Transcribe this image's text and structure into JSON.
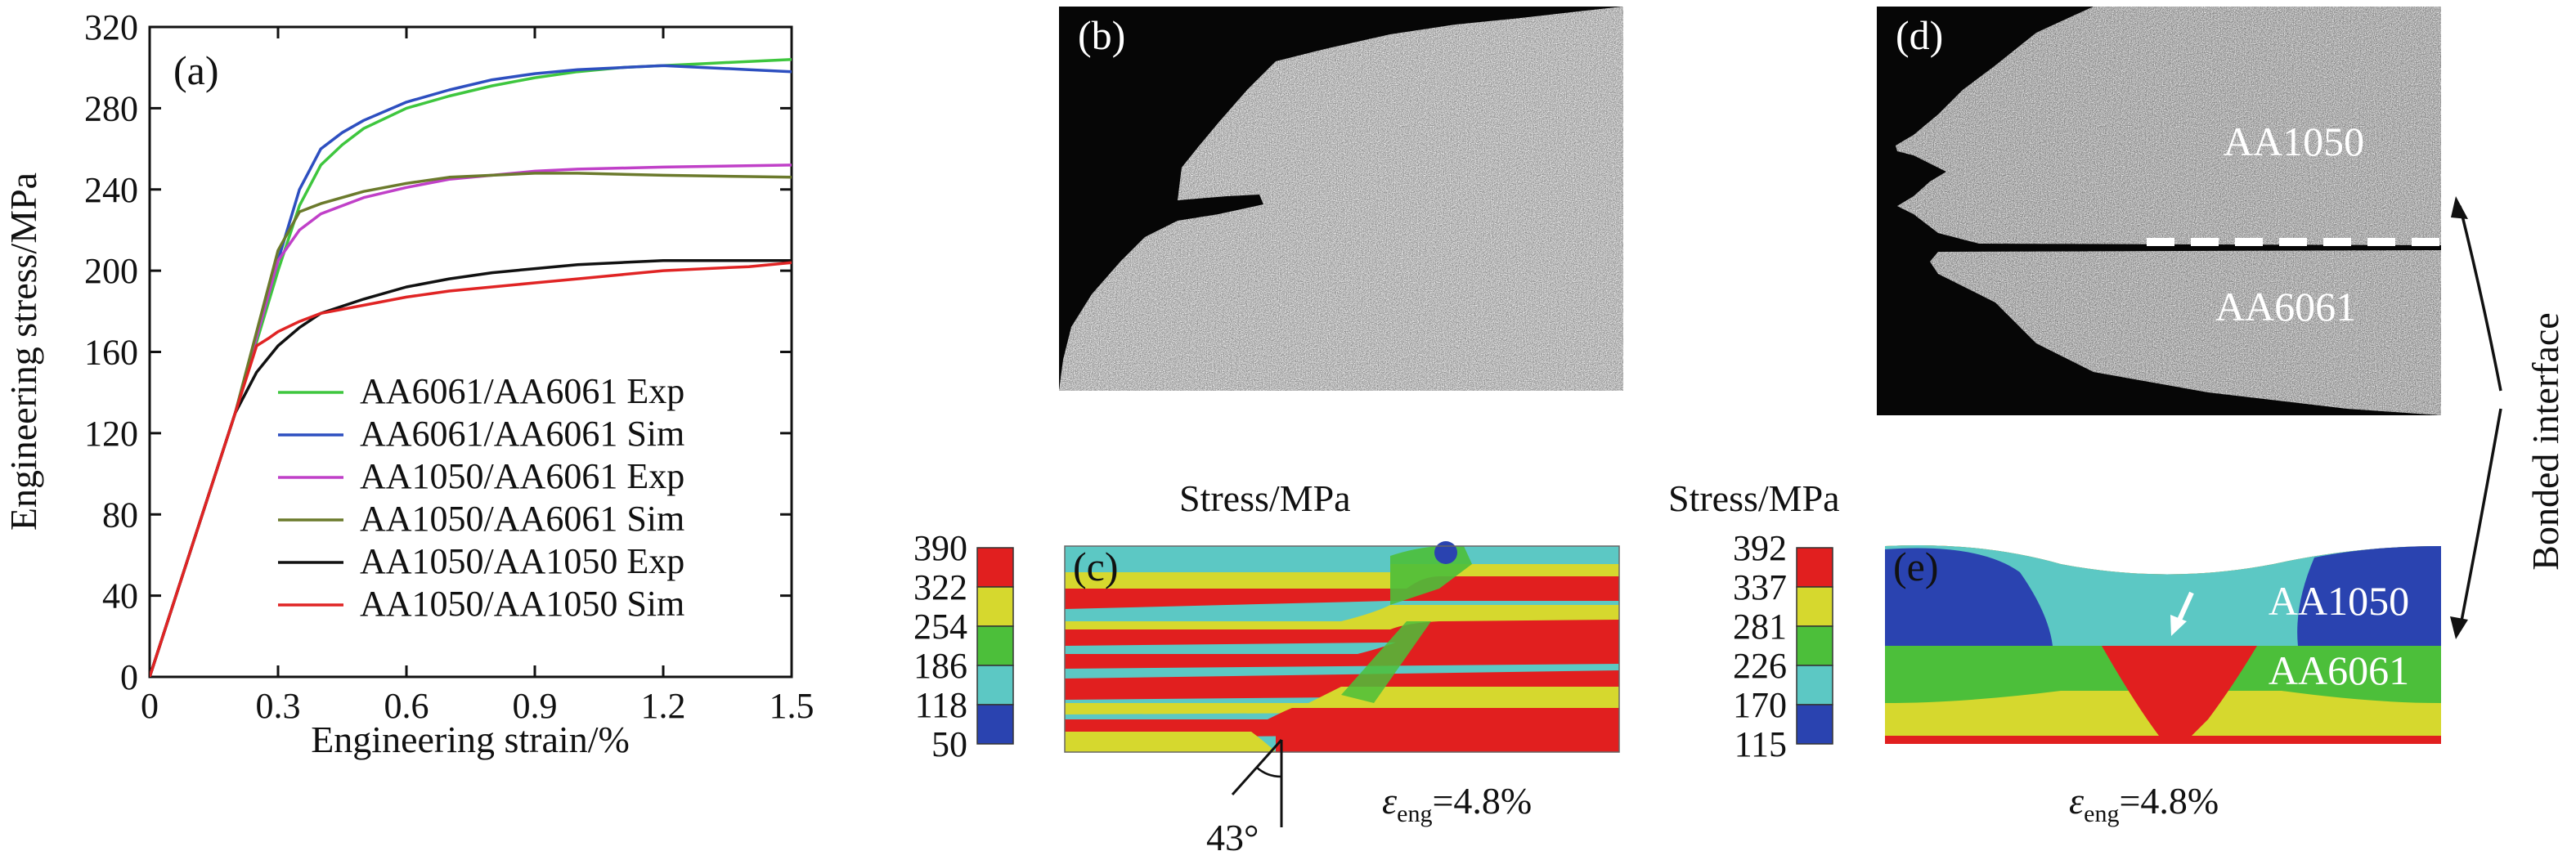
{
  "chart_data": {
    "type": "line",
    "panel_label": "(a)",
    "xlabel": "Engineering strain/%",
    "ylabel": "Engineering stress/MPa",
    "xlim": [
      0,
      1.5
    ],
    "ylim": [
      0,
      320
    ],
    "x_ticks": [
      "0",
      "0.3",
      "0.6",
      "0.9",
      "1.2",
      "1.5"
    ],
    "y_ticks": [
      "0",
      "40",
      "80",
      "120",
      "160",
      "200",
      "240",
      "280",
      "320"
    ],
    "grid": false,
    "legend_position": "bottom-right",
    "series": [
      {
        "name": "AA6061/AA6061 Exp",
        "color": "#3ec63e",
        "points": [
          [
            0,
            0
          ],
          [
            0.1,
            65
          ],
          [
            0.2,
            130
          ],
          [
            0.3,
            200
          ],
          [
            0.35,
            232
          ],
          [
            0.4,
            252
          ],
          [
            0.45,
            262
          ],
          [
            0.5,
            270
          ],
          [
            0.6,
            280
          ],
          [
            0.7,
            286
          ],
          [
            0.8,
            291
          ],
          [
            0.9,
            295
          ],
          [
            1.0,
            298
          ],
          [
            1.1,
            300
          ],
          [
            1.2,
            301
          ],
          [
            1.3,
            302
          ],
          [
            1.4,
            303
          ],
          [
            1.5,
            304
          ]
        ]
      },
      {
        "name": "AA6061/AA6061 Sim",
        "color": "#2d4fc0",
        "points": [
          [
            0,
            0
          ],
          [
            0.1,
            65
          ],
          [
            0.2,
            130
          ],
          [
            0.3,
            205
          ],
          [
            0.35,
            240
          ],
          [
            0.4,
            260
          ],
          [
            0.45,
            268
          ],
          [
            0.5,
            274
          ],
          [
            0.6,
            283
          ],
          [
            0.7,
            289
          ],
          [
            0.8,
            294
          ],
          [
            0.9,
            297
          ],
          [
            1.0,
            299
          ],
          [
            1.1,
            300
          ],
          [
            1.2,
            301
          ],
          [
            1.3,
            300
          ],
          [
            1.4,
            299
          ],
          [
            1.5,
            298
          ]
        ]
      },
      {
        "name": "AA1050/AA6061 Exp",
        "color": "#c040c8",
        "points": [
          [
            0,
            0
          ],
          [
            0.1,
            65
          ],
          [
            0.2,
            130
          ],
          [
            0.3,
            205
          ],
          [
            0.35,
            220
          ],
          [
            0.4,
            228
          ],
          [
            0.5,
            236
          ],
          [
            0.6,
            241
          ],
          [
            0.7,
            245
          ],
          [
            0.8,
            247
          ],
          [
            0.9,
            249
          ],
          [
            1.0,
            250
          ],
          [
            1.2,
            251
          ],
          [
            1.5,
            252
          ]
        ]
      },
      {
        "name": "AA1050/AA6061 Sim",
        "color": "#6b7a2c",
        "points": [
          [
            0,
            0
          ],
          [
            0.1,
            65
          ],
          [
            0.2,
            130
          ],
          [
            0.3,
            210
          ],
          [
            0.35,
            229
          ],
          [
            0.4,
            233
          ],
          [
            0.5,
            239
          ],
          [
            0.6,
            243
          ],
          [
            0.7,
            246
          ],
          [
            0.8,
            247
          ],
          [
            0.9,
            248
          ],
          [
            1.0,
            248
          ],
          [
            1.2,
            247
          ],
          [
            1.5,
            246
          ]
        ]
      },
      {
        "name": "AA1050/AA1050 Exp",
        "color": "#111111",
        "points": [
          [
            0,
            0
          ],
          [
            0.1,
            65
          ],
          [
            0.2,
            130
          ],
          [
            0.25,
            150
          ],
          [
            0.3,
            163
          ],
          [
            0.35,
            172
          ],
          [
            0.4,
            179
          ],
          [
            0.5,
            186
          ],
          [
            0.6,
            192
          ],
          [
            0.7,
            196
          ],
          [
            0.8,
            199
          ],
          [
            0.9,
            201
          ],
          [
            1.0,
            203
          ],
          [
            1.1,
            204
          ],
          [
            1.2,
            205
          ],
          [
            1.3,
            205
          ],
          [
            1.4,
            205
          ],
          [
            1.5,
            205
          ]
        ]
      },
      {
        "name": "AA1050/AA1050 Sim",
        "color": "#e02424",
        "points": [
          [
            0,
            0
          ],
          [
            0.1,
            65
          ],
          [
            0.2,
            130
          ],
          [
            0.25,
            163
          ],
          [
            0.28,
            167
          ],
          [
            0.3,
            170
          ],
          [
            0.35,
            175
          ],
          [
            0.4,
            179
          ],
          [
            0.5,
            183
          ],
          [
            0.6,
            187
          ],
          [
            0.7,
            190
          ],
          [
            0.8,
            192
          ],
          [
            0.9,
            194
          ],
          [
            1.0,
            196
          ],
          [
            1.1,
            198
          ],
          [
            1.2,
            200
          ],
          [
            1.3,
            201
          ],
          [
            1.4,
            202
          ],
          [
            1.5,
            204
          ]
        ]
      }
    ]
  },
  "images": {
    "b": {
      "label": "(b)"
    },
    "d": {
      "label": "(d)",
      "top_material": "AA1050",
      "bottom_material": "AA6061"
    },
    "interface_label": "Bonded interface"
  },
  "sim_c": {
    "label": "(c)",
    "scale_title": "Stress/MPa",
    "scale_values": [
      "390",
      "322",
      "254",
      "186",
      "118",
      "50"
    ],
    "angle": "43°",
    "strain_symbol": "ε",
    "strain_sub": "eng",
    "strain_value": "=4.8%"
  },
  "sim_e": {
    "label": "(e)",
    "scale_title": "Stress/MPa",
    "scale_values": [
      "392",
      "337",
      "281",
      "226",
      "170",
      "115"
    ],
    "top_material": "AA1050",
    "bottom_material": "AA6061",
    "strain_symbol": "ε",
    "strain_sub": "eng",
    "strain_value": "=4.8%"
  },
  "colors": {
    "contour": [
      "#e11f1f",
      "#d6d82e",
      "#4cbf3a",
      "#5cc8c4",
      "#2a43b0"
    ]
  }
}
